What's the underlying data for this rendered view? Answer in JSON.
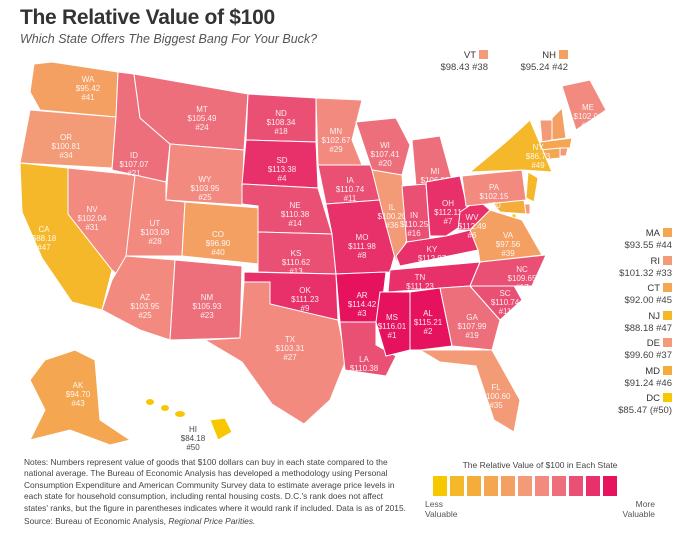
{
  "header": {
    "title": "The Relative Value of $100",
    "subtitle": "Which State Offers The Biggest Bang For Your Buck?"
  },
  "states": {
    "WA": {
      "value": "$95.42",
      "rank": "#41",
      "v": 95.42
    },
    "OR": {
      "value": "$100.81",
      "rank": "#34",
      "v": 100.81
    },
    "CA": {
      "value": "$88.18",
      "rank": "#47",
      "v": 88.18
    },
    "NV": {
      "value": "$102.04",
      "rank": "#31",
      "v": 102.04
    },
    "ID": {
      "value": "$107.07",
      "rank": "#21",
      "v": 107.07
    },
    "MT": {
      "value": "$105.49",
      "rank": "#24",
      "v": 105.49
    },
    "WY": {
      "value": "$103.95",
      "rank": "#25",
      "v": 103.95
    },
    "UT": {
      "value": "$103.09",
      "rank": "#28",
      "v": 103.09
    },
    "CO": {
      "value": "$96.90",
      "rank": "#40",
      "v": 96.9
    },
    "AZ": {
      "value": "$103.95",
      "rank": "#25",
      "v": 103.95
    },
    "NM": {
      "value": "$105.93",
      "rank": "#23",
      "v": 105.93
    },
    "ND": {
      "value": "$108.34",
      "rank": "#18",
      "v": 108.34
    },
    "SD": {
      "value": "$113.38",
      "rank": "#4",
      "v": 113.38
    },
    "NE": {
      "value": "$110.38",
      "rank": "#14",
      "v": 110.38
    },
    "KS": {
      "value": "$110.62",
      "rank": "#13",
      "v": 110.62
    },
    "OK": {
      "value": "$111.23",
      "rank": "#9",
      "v": 111.23
    },
    "TX": {
      "value": "$103.31",
      "rank": "#27",
      "v": 103.31
    },
    "MN": {
      "value": "$102.67",
      "rank": "#29",
      "v": 102.67
    },
    "IA": {
      "value": "$110.74",
      "rank": "#11",
      "v": 110.74
    },
    "MO": {
      "value": "$111.98",
      "rank": "#8",
      "v": 111.98
    },
    "AR": {
      "value": "$114.42",
      "rank": "#3",
      "v": 114.42
    },
    "LA": {
      "value": "$110.38",
      "rank": "#14",
      "v": 110.38
    },
    "WI": {
      "value": "$107.41",
      "rank": "#20",
      "v": 107.41
    },
    "IL": {
      "value": "$100.20",
      "rank": "#36",
      "v": 100.2
    },
    "MI": {
      "value": "$106.95",
      "rank": "#22",
      "v": 106.95
    },
    "IN": {
      "value": "$110.25",
      "rank": "#16",
      "v": 110.25
    },
    "OH": {
      "value": "$112.11",
      "rank": "#7",
      "v": 112.11
    },
    "KY": {
      "value": "$112.87",
      "rank": "#5",
      "v": 112.87
    },
    "TN": {
      "value": "$111.23",
      "rank": "#9",
      "v": 111.23
    },
    "MS": {
      "value": "$116.01",
      "rank": "#1",
      "v": 116.01
    },
    "AL": {
      "value": "$115.21",
      "rank": "#2",
      "v": 115.21
    },
    "GA": {
      "value": "$107.99",
      "rank": "#19",
      "v": 107.99
    },
    "FL": {
      "value": "$100.60",
      "rank": "#35",
      "v": 100.6
    },
    "SC": {
      "value": "$110.74",
      "rank": "#11",
      "v": 110.74
    },
    "NC": {
      "value": "$109.65",
      "rank": "#17",
      "v": 109.65
    },
    "VA": {
      "value": "$97.56",
      "rank": "#39",
      "v": 97.56
    },
    "WV": {
      "value": "$112.49",
      "rank": "#6",
      "v": 112.49
    },
    "PA": {
      "value": "$102.15",
      "rank": "#30",
      "v": 102.15
    },
    "NY": {
      "value": "$86.73",
      "rank": "#49",
      "v": 86.73
    },
    "ME": {
      "value": "$102.04",
      "rank": "#31",
      "v": 102.04
    },
    "AK": {
      "value": "$94.70",
      "rank": "#43",
      "v": 94.7
    },
    "HI": {
      "value": "$84.18",
      "rank": "#50",
      "v": 84.18
    }
  },
  "small_states": [
    {
      "code": "VT",
      "value": "$98.43 #38",
      "v": 98.43
    },
    {
      "code": "NH",
      "value": "$95.24 #42",
      "v": 95.24
    },
    {
      "code": "MA",
      "value": "$93.55 #44",
      "v": 93.55
    },
    {
      "code": "RI",
      "value": "$101.32 #33",
      "v": 101.32
    },
    {
      "code": "CT",
      "value": "$92.00 #45",
      "v": 92.0
    },
    {
      "code": "NJ",
      "value": "$88.18 #47",
      "v": 88.18
    },
    {
      "code": "DE",
      "value": "$99.60 #37",
      "v": 99.6
    },
    {
      "code": "MD",
      "value": "$91.24 #46",
      "v": 91.24
    },
    {
      "code": "DC",
      "value": "$85.47 (#50)",
      "v": 85.47
    }
  ],
  "notes": {
    "text": "Notes: Numbers represent value of goods that $100 dollars can buy in each state compared to the national average. The Bureau of Economic Analysis has developed a methodology using Personal Consumption Expenditure and American Community Survey data to estimate average price levels in each state for household consumption, including rental housing costs. D.C.'s rank does not affect states' ranks, but the figure in parentheses indicates where it would rank if included. Data is as of 2015.",
    "source_prefix": "Source: Bureau of Economic Analysis, ",
    "source_italic": "Regional Price Parities."
  },
  "legend": {
    "title": "The Relative Value of $100 in Each State",
    "low": "Less Valuable",
    "high": "More Valuable",
    "colors": [
      "#f7c800",
      "#f5b82a",
      "#f4ad3a",
      "#f4a650",
      "#f4a063",
      "#f39a76",
      "#f28a80",
      "#ee6f7c",
      "#ea4f74",
      "#e8306a",
      "#e6125e"
    ]
  },
  "scale": {
    "min": 84,
    "max": 116
  }
}
